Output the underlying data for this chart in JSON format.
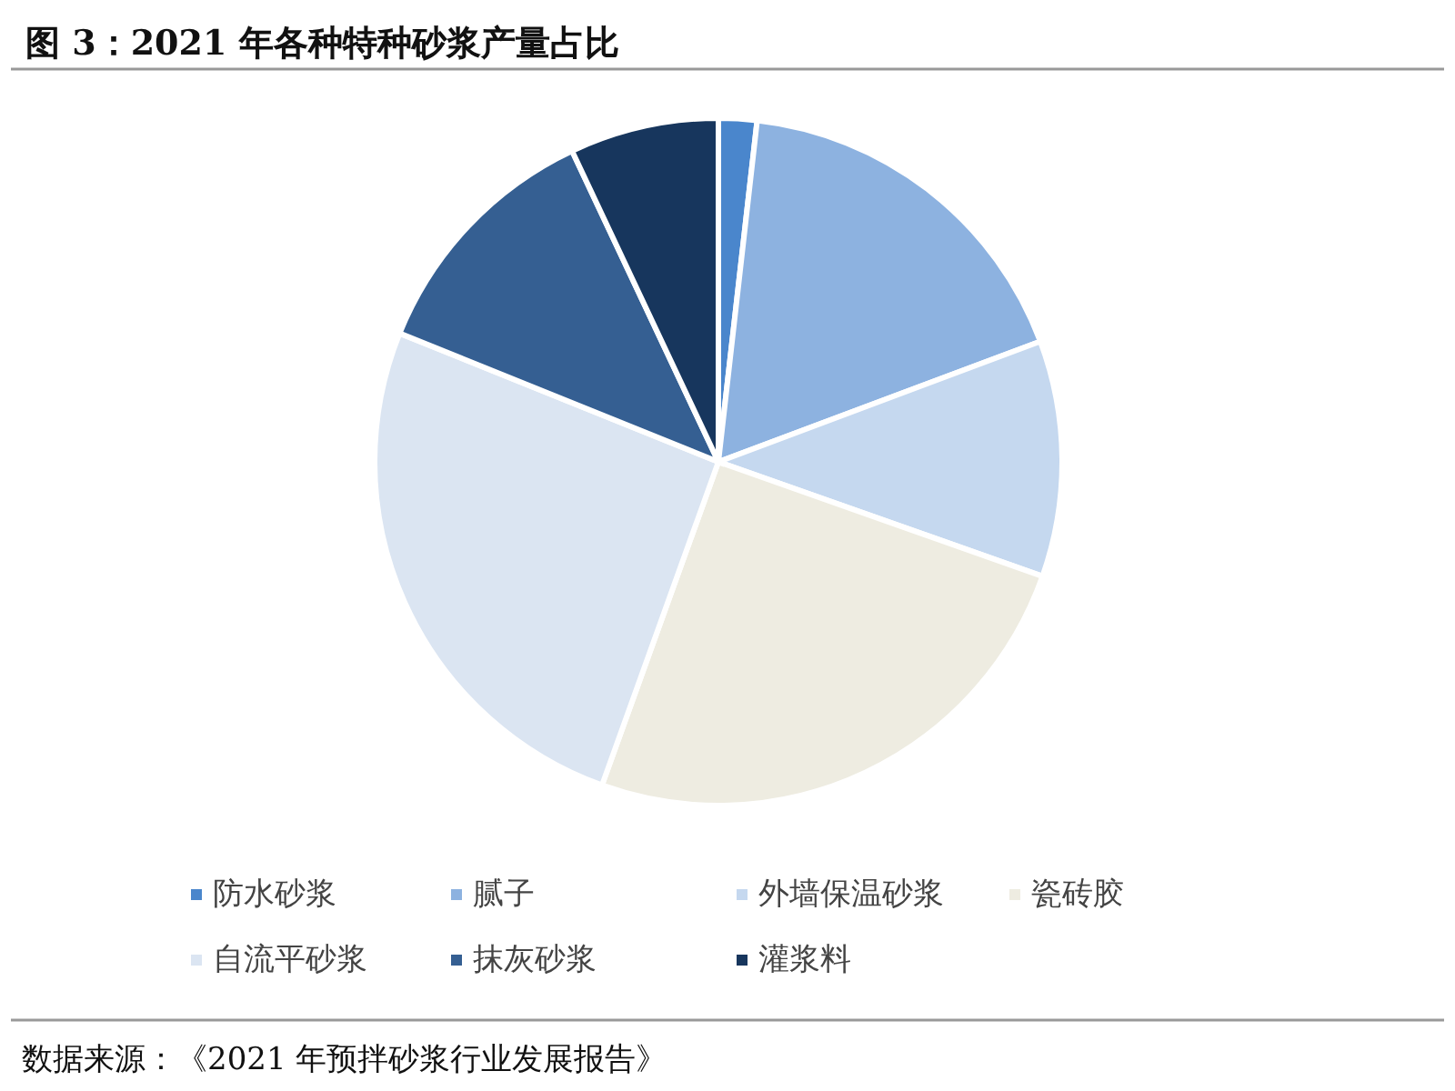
{
  "chart_data": {
    "type": "pie",
    "title": "图 3：2021 年各种特种砂浆产量占比",
    "categories": [
      "防水砂浆",
      "腻子",
      "外墙保温砂浆",
      "瓷砖胶",
      "自流平砂浆",
      "抹灰砂浆",
      "灌浆料"
    ],
    "values": [
      1.8,
      17.5,
      11.1,
      25.1,
      25.6,
      11.9,
      7.0
    ],
    "colors": [
      "#4a86cc",
      "#8db2e0",
      "#c5d8ef",
      "#eeece1",
      "#dbe5f2",
      "#355f92",
      "#17365d"
    ],
    "legend": "bottom",
    "annotations": [
      "数据来源：《2021 年预拌砂浆行业发展报告》"
    ]
  }
}
